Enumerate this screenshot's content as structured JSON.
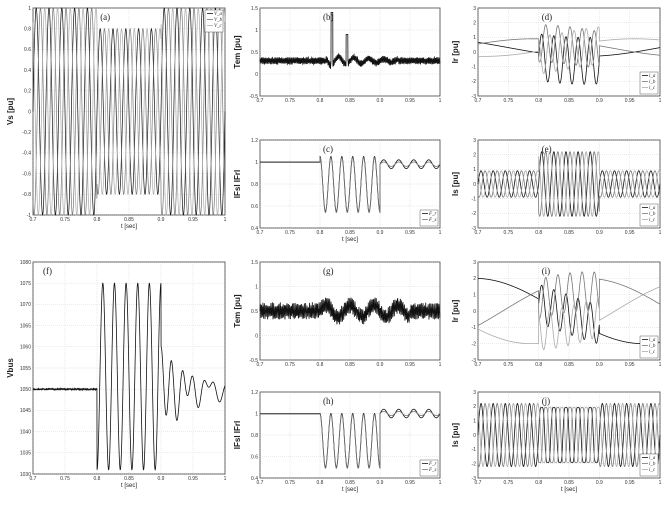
{
  "chart_data": [
    {
      "id": "a",
      "type": "line",
      "label": "(a)",
      "ylabel": "Vs [pu]",
      "xlabel": "t [sec]",
      "xlim": [
        0.7,
        1.0
      ],
      "ylim": [
        -1,
        1
      ],
      "xticks": [
        "0.7",
        "0.75",
        "0.8",
        "0.85",
        "0.9",
        "0.95",
        "1"
      ],
      "yticks": [
        "-1",
        "-0.8",
        "-0.6",
        "-0.4",
        "-0.2",
        "0",
        "0.2",
        "0.4",
        "0.6",
        "0.8",
        "1"
      ],
      "legend": [
        "V_a",
        "V_b",
        "V_c"
      ],
      "legend_loc": "top-right",
      "signal": {
        "kind": "three_phase_sag",
        "freq": 50,
        "amp": 1.0,
        "sag_start": 0.8,
        "sag_end": 0.9,
        "sag_amp": 0.8
      }
    },
    {
      "id": "b",
      "type": "line",
      "label": "(b)",
      "ylabel": "Tem [pu]",
      "xlabel": "",
      "xlim": [
        0.7,
        1.0
      ],
      "ylim": [
        -0.5,
        1.5
      ],
      "xticks": [
        "0.7",
        "0.75",
        "0.8",
        "0.85",
        "0.9",
        "0.95",
        "1"
      ],
      "yticks": [
        "-0.5",
        "0",
        "0.5",
        "1",
        "1.5"
      ],
      "legend": [],
      "legend_loc": "",
      "signal": {
        "kind": "torque",
        "base": 0.3,
        "spikes": [
          [
            0.82,
            1.4
          ],
          [
            0.845,
            0.9
          ]
        ]
      }
    },
    {
      "id": "c",
      "type": "line",
      "label": "(c)",
      "ylabel": "IFsI IFrI",
      "xlabel": "t [sec]",
      "xlim": [
        0.7,
        1.0
      ],
      "ylim": [
        0.4,
        1.2
      ],
      "xticks": [
        "0.7",
        "0.75",
        "0.8",
        "0.85",
        "0.9",
        "0.95",
        "1"
      ],
      "yticks": [
        "0.4",
        "0.6",
        "0.8",
        "1",
        "1.2"
      ],
      "legend": [
        "F_r",
        "F_s"
      ],
      "legend_loc": "bottom-right",
      "signal": {
        "kind": "flux",
        "pre": 1.0,
        "dip": 0.55,
        "post": 0.98
      }
    },
    {
      "id": "d",
      "type": "line",
      "label": "(d)",
      "ylabel": "Ir [pu]",
      "xlabel": "",
      "xlim": [
        0.7,
        1.0
      ],
      "ylim": [
        -3,
        3
      ],
      "xticks": [
        "0.7",
        "0.75",
        "0.8",
        "0.85",
        "0.9",
        "0.95",
        "1"
      ],
      "yticks": [
        "-3",
        "-2",
        "-1",
        "0",
        "1",
        "2",
        "3"
      ],
      "legend": [
        "i_a",
        "i_b",
        "i_c"
      ],
      "legend_loc": "bottom-right",
      "signal": {
        "kind": "rotor_current",
        "amp": 1.0
      }
    },
    {
      "id": "e",
      "type": "line",
      "label": "(e)",
      "ylabel": "Is [pu]",
      "xlabel": "",
      "xlim": [
        0.7,
        1.0
      ],
      "ylim": [
        -3,
        3
      ],
      "xticks": [
        "0.7",
        "0.75",
        "0.8",
        "0.85",
        "0.9",
        "0.95",
        "1"
      ],
      "yticks": [
        "-3",
        "-2",
        "-1",
        "0",
        "1",
        "2",
        "3"
      ],
      "legend": [
        "i_a",
        "i_b",
        "i_c"
      ],
      "legend_loc": "bottom-right",
      "signal": {
        "kind": "stator_current",
        "amp": 1.0
      }
    },
    {
      "id": "f",
      "type": "line",
      "label": "(f)",
      "ylabel": "Vbus",
      "xlabel": "t [sec]",
      "xlim": [
        0.7,
        1.0
      ],
      "ylim": [
        1030,
        1080
      ],
      "xticks": [
        "0.7",
        "0.75",
        "0.8",
        "0.85",
        "0.9",
        "0.95",
        "1"
      ],
      "yticks": [
        "1030",
        "1035",
        "1040",
        "1045",
        "1050",
        "1055",
        "1060",
        "1065",
        "1070",
        "1075",
        "1080"
      ],
      "legend": [],
      "legend_loc": "",
      "signal": {
        "kind": "vbus",
        "base": 1050
      }
    },
    {
      "id": "g",
      "type": "line",
      "label": "(g)",
      "ylabel": "Tem [pu]",
      "xlabel": "",
      "xlim": [
        0.7,
        1.0
      ],
      "ylim": [
        -0.5,
        1.5
      ],
      "xticks": [
        "0.7",
        "0.75",
        "0.8",
        "0.85",
        "0.9",
        "0.95",
        "1"
      ],
      "yticks": [
        "-0.5",
        "0",
        "0.5",
        "1",
        "1.5"
      ],
      "legend": [],
      "legend_loc": "",
      "signal": {
        "kind": "torque_noisy",
        "base": 0.5
      }
    },
    {
      "id": "h",
      "type": "line",
      "label": "(h)",
      "ylabel": "IFsI IFrI",
      "xlabel": "t [sec]",
      "xlim": [
        0.7,
        1.0
      ],
      "ylim": [
        0.4,
        1.2
      ],
      "xticks": [
        "0.7",
        "0.75",
        "0.8",
        "0.85",
        "0.9",
        "0.95",
        "1"
      ],
      "yticks": [
        "0.4",
        "0.6",
        "0.8",
        "1",
        "1.2"
      ],
      "legend": [
        "F_r",
        "F_s"
      ],
      "legend_loc": "bottom-right",
      "signal": {
        "kind": "flux",
        "pre": 1.0,
        "dip": 0.5,
        "post": 1.0
      }
    },
    {
      "id": "i",
      "type": "line",
      "label": "(i)",
      "ylabel": "Ir [pu]",
      "xlabel": "",
      "xlim": [
        0.7,
        1.0
      ],
      "ylim": [
        -3,
        3
      ],
      "xticks": [
        "0.7",
        "0.75",
        "0.8",
        "0.85",
        "0.9",
        "0.95",
        "1"
      ],
      "yticks": [
        "-3",
        "-2",
        "-1",
        "0",
        "1",
        "2",
        "3"
      ],
      "legend": [
        "i_a",
        "i_b",
        "i_c"
      ],
      "legend_loc": "bottom-right",
      "signal": {
        "kind": "rotor_current_big",
        "amp": 2.0
      }
    },
    {
      "id": "j",
      "type": "line",
      "label": "(j)",
      "ylabel": "Is [pu]",
      "xlabel": "t [sec]",
      "xlim": [
        0.7,
        1.0
      ],
      "ylim": [
        -3,
        3
      ],
      "xticks": [
        "0.7",
        "0.75",
        "0.8",
        "0.85",
        "0.9",
        "0.95",
        "1"
      ],
      "yticks": [
        "-3",
        "-2",
        "-1",
        "0",
        "1",
        "2",
        "3"
      ],
      "legend": [
        "i_a",
        "i_b",
        "i_c"
      ],
      "legend_loc": "bottom-right",
      "signal": {
        "kind": "stator_current_big",
        "amp": 2.2
      }
    }
  ],
  "colors": {
    "axis": "#333333",
    "grid": "#bbbbbb",
    "s1": "#111111",
    "s2": "#777777",
    "s3": "#aaaaaa"
  }
}
